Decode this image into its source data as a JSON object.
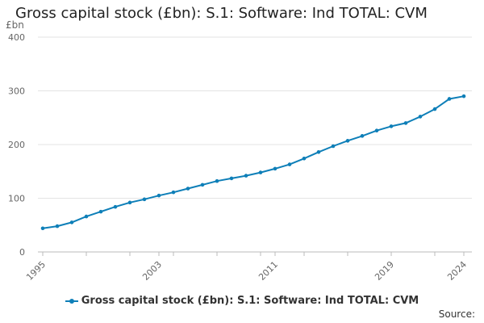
{
  "chart_data": {
    "type": "line",
    "title": "Gross capital stock (£bn): S.1: Software: Ind TOTAL: CVM",
    "ylabel": "£bn",
    "xlabel": "",
    "ylim": [
      0,
      400
    ],
    "yticks": [
      0,
      100,
      200,
      300,
      400
    ],
    "xlim": [
      1995,
      2024
    ],
    "xticks": [
      1995,
      2003,
      2011,
      2019,
      2024
    ],
    "grid": true,
    "legend_position": "bottom",
    "series": [
      {
        "name": "Gross capital stock (£bn): S.1: Software: Ind TOTAL: CVM",
        "color": "#0e7fb8",
        "x": [
          1995,
          1996,
          1997,
          1998,
          1999,
          2000,
          2001,
          2002,
          2003,
          2004,
          2005,
          2006,
          2007,
          2008,
          2009,
          2010,
          2011,
          2012,
          2013,
          2014,
          2015,
          2016,
          2017,
          2018,
          2019,
          2020,
          2021,
          2022,
          2023,
          2024
        ],
        "values": [
          44,
          48,
          55,
          66,
          75,
          84,
          92,
          98,
          105,
          111,
          118,
          125,
          132,
          137,
          142,
          148,
          155,
          163,
          174,
          186,
          197,
          207,
          216,
          226,
          234,
          240,
          252,
          266,
          285,
          290
        ]
      }
    ]
  },
  "source_label": "Source:"
}
